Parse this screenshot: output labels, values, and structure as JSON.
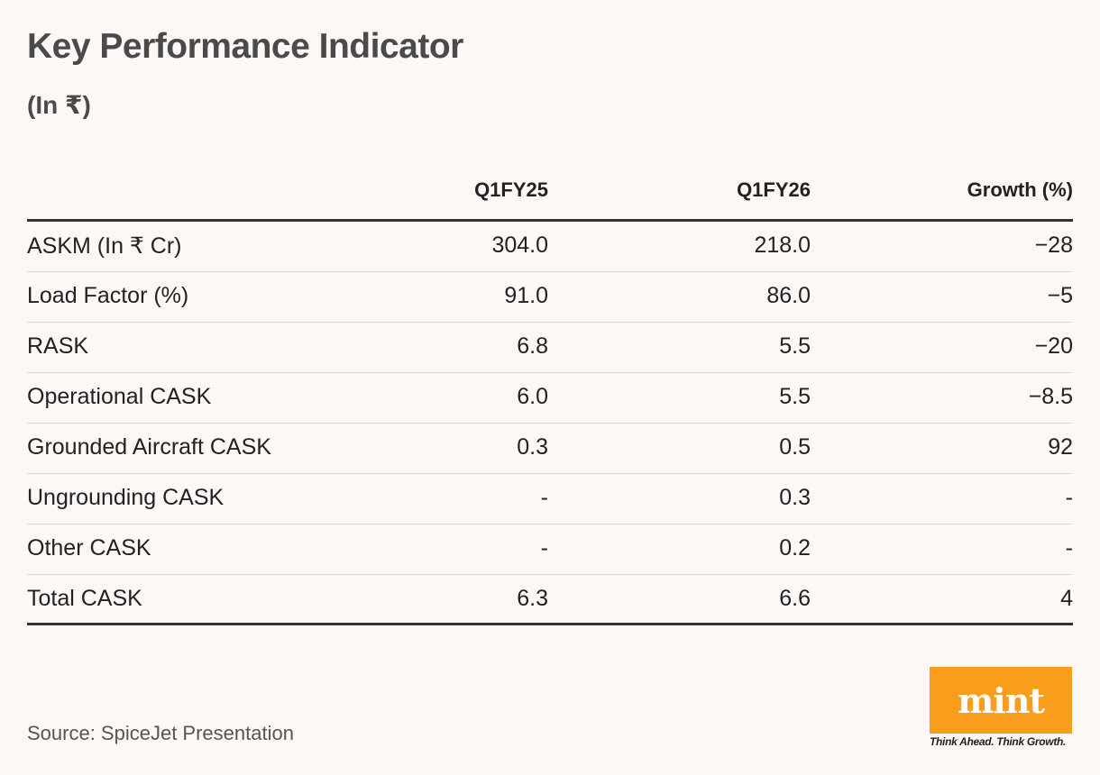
{
  "header": {
    "title": "Key Performance Indicator",
    "subtitle": "(In ₹)"
  },
  "chart_data": {
    "type": "table",
    "title": "Key Performance Indicator",
    "subtitle": "(In ₹)",
    "columns": [
      "",
      "Q1FY25",
      "Q1FY26",
      "Growth (%)"
    ],
    "rows": [
      {
        "label": "ASKM (In ₹ Cr)",
        "q1fy25": "304.0",
        "q1fy26": "218.0",
        "growth": "−28"
      },
      {
        "label": "Load Factor (%)",
        "q1fy25": "91.0",
        "q1fy26": "86.0",
        "growth": "−5"
      },
      {
        "label": "RASK",
        "q1fy25": "6.8",
        "q1fy26": "5.5",
        "growth": "−20"
      },
      {
        "label": "Operational CASK",
        "q1fy25": "6.0",
        "q1fy26": "5.5",
        "growth": "−8.5"
      },
      {
        "label": "Grounded Aircraft CASK",
        "q1fy25": "0.3",
        "q1fy26": "0.5",
        "growth": "92"
      },
      {
        "label": "Ungrounding CASK",
        "q1fy25": "-",
        "q1fy26": "0.3",
        "growth": "-"
      },
      {
        "label": "Other CASK",
        "q1fy25": "-",
        "q1fy26": "0.2",
        "growth": "-"
      },
      {
        "label": "Total CASK",
        "q1fy25": "6.3",
        "q1fy26": "6.6",
        "growth": "4"
      }
    ]
  },
  "footer": {
    "source": "Source: SpiceJet Presentation",
    "logo_text": "mint",
    "tagline": "Think Ahead. Think Growth."
  },
  "colors": {
    "background": "#fdf8f6",
    "logo_orange": "#f99d1c",
    "title_gray": "#4a4a4a"
  }
}
